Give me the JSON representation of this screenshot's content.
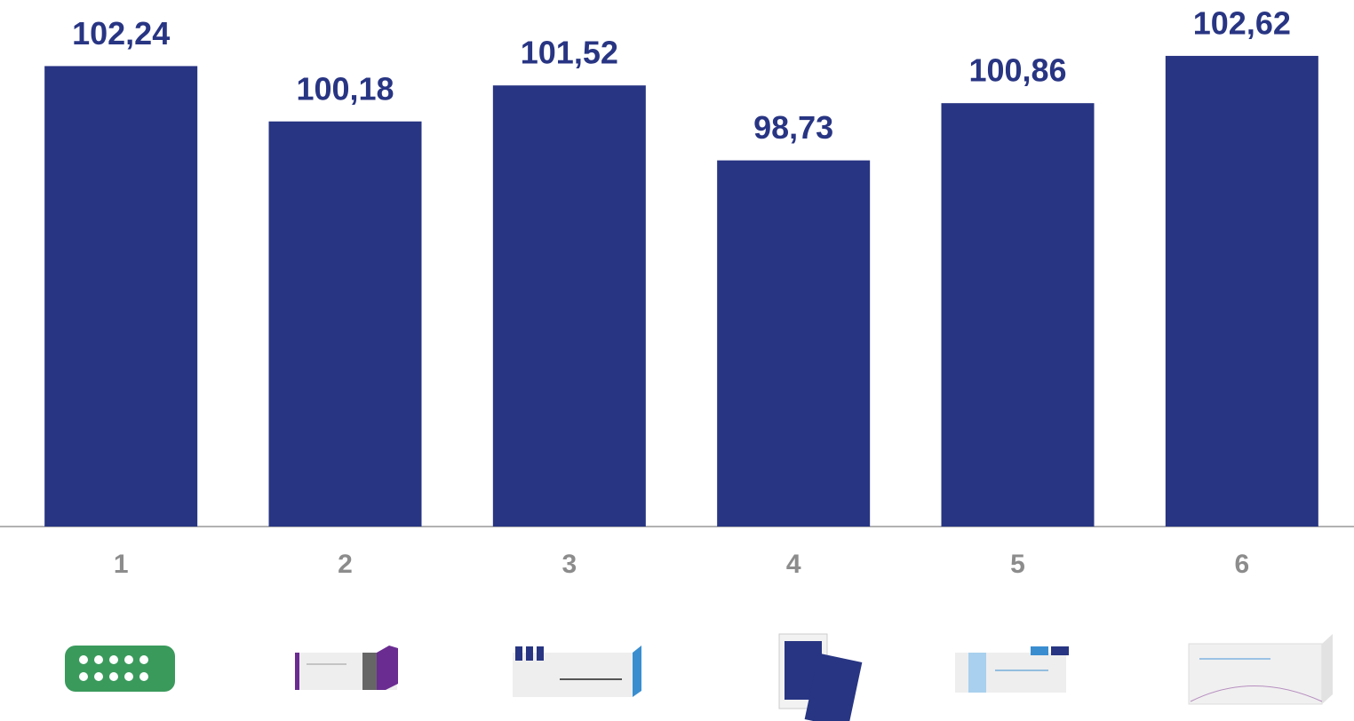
{
  "chart_data": {
    "type": "bar",
    "categories": [
      "1",
      "2",
      "3",
      "4",
      "5",
      "6"
    ],
    "values": [
      102.24,
      100.18,
      101.52,
      98.73,
      100.86,
      102.62
    ],
    "value_labels": [
      "102,24",
      "100,18",
      "101,52",
      "98,73",
      "100,86",
      "102,62"
    ],
    "color": "#283583",
    "ylim": [
      85.1,
      104.7
    ]
  }
}
